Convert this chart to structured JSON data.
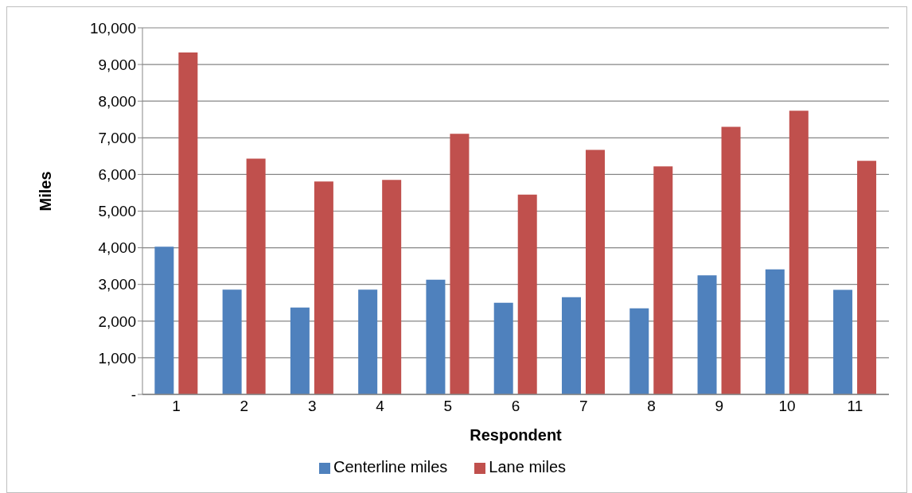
{
  "chart_data": {
    "type": "bar",
    "xlabel": "Respondent",
    "ylabel": "Miles",
    "categories": [
      "1",
      "2",
      "3",
      "4",
      "5",
      "6",
      "7",
      "8",
      "9",
      "10",
      "11"
    ],
    "series": [
      {
        "name": "Centerline miles",
        "color": "#4f81bd",
        "values": [
          4030,
          2860,
          2370,
          2860,
          3130,
          2500,
          2650,
          2350,
          3250,
          3410,
          2850
        ]
      },
      {
        "name": "Lane miles",
        "color": "#c0504d",
        "values": [
          9330,
          6430,
          5810,
          5850,
          7110,
          5450,
          6670,
          6220,
          7300,
          7740,
          6370
        ]
      }
    ],
    "ylim": [
      0,
      10000
    ],
    "yticks": [
      {
        "value": 0,
        "label": "-"
      },
      {
        "value": 1000,
        "label": "1,000"
      },
      {
        "value": 2000,
        "label": "2,000"
      },
      {
        "value": 3000,
        "label": "3,000"
      },
      {
        "value": 4000,
        "label": "4,000"
      },
      {
        "value": 5000,
        "label": "5,000"
      },
      {
        "value": 6000,
        "label": "6,000"
      },
      {
        "value": 7000,
        "label": "7,000"
      },
      {
        "value": 8000,
        "label": "8,000"
      },
      {
        "value": 9000,
        "label": "9,000"
      },
      {
        "value": 10000,
        "label": "10,000"
      }
    ],
    "grid": "y",
    "legend": "bottom"
  }
}
